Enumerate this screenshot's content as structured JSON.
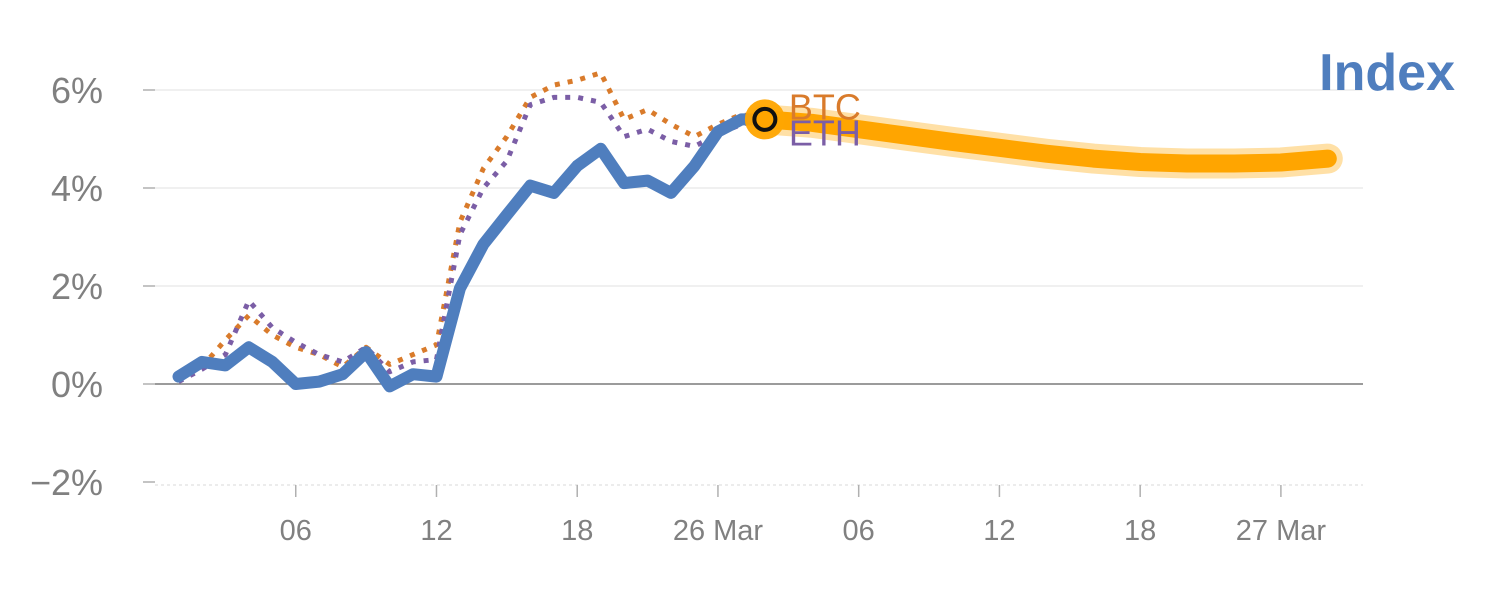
{
  "chart_data": {
    "type": "line",
    "title": "Index",
    "xlabel": "",
    "ylabel": "",
    "ylim": [
      -2,
      7
    ],
    "yticks": [
      -2,
      0,
      2,
      4,
      6
    ],
    "ytick_labels": [
      "−2%",
      "0%",
      "2%",
      "4%",
      "6%"
    ],
    "x_tick_labels": [
      "06",
      "12",
      "18",
      "26 Mar",
      "06",
      "12",
      "18",
      "27 Mar"
    ],
    "x_tick_positions": [
      5,
      11,
      17,
      23,
      29,
      35,
      41,
      47
    ],
    "xlim": [
      -1,
      50.5
    ],
    "grid": true,
    "series": [
      {
        "name": "Index",
        "style": "solid",
        "color": "#4f7ebe",
        "x": [
          0,
          1,
          2,
          3,
          4,
          5,
          6,
          7,
          8,
          9,
          10,
          11,
          12,
          13,
          14,
          15,
          16,
          17,
          18,
          19,
          20,
          21,
          22,
          23,
          24,
          25
        ],
        "values": [
          0.15,
          0.45,
          0.38,
          0.75,
          0.45,
          0.0,
          0.05,
          0.2,
          0.65,
          -0.05,
          0.2,
          0.15,
          1.95,
          2.85,
          3.45,
          4.05,
          3.9,
          4.45,
          4.8,
          4.1,
          4.15,
          3.9,
          4.45,
          5.15,
          5.4,
          5.4
        ]
      },
      {
        "name": "BTC",
        "style": "dotted",
        "color": "#d97b2b",
        "x": [
          0,
          1,
          2,
          3,
          4,
          5,
          6,
          7,
          8,
          9,
          10,
          11,
          12,
          13,
          14,
          15,
          16,
          17,
          18,
          19,
          20,
          21,
          22,
          23,
          24,
          25
        ],
        "values": [
          0.1,
          0.35,
          0.9,
          1.4,
          1.0,
          0.75,
          0.6,
          0.35,
          0.75,
          0.4,
          0.6,
          0.8,
          3.3,
          4.4,
          5.05,
          5.85,
          6.1,
          6.2,
          6.35,
          5.4,
          5.6,
          5.3,
          5.05,
          5.3,
          5.5,
          5.4
        ]
      },
      {
        "name": "ETH",
        "style": "dotted",
        "color": "#7b5ea6",
        "x": [
          0,
          1,
          2,
          3,
          4,
          5,
          6,
          7,
          8,
          9,
          10,
          11,
          12,
          13,
          14,
          15,
          16,
          17,
          18,
          19,
          20,
          21,
          22,
          23,
          24,
          25
        ],
        "values": [
          0.05,
          0.3,
          0.6,
          1.7,
          1.15,
          0.85,
          0.6,
          0.45,
          0.75,
          0.25,
          0.45,
          0.5,
          3.05,
          4.0,
          4.55,
          5.7,
          5.85,
          5.85,
          5.75,
          5.05,
          5.2,
          4.95,
          4.85,
          5.1,
          5.3,
          5.4
        ]
      },
      {
        "name": "forecast",
        "style": "band",
        "color": "#ffa500",
        "x": [
          25,
          27,
          29,
          31,
          33,
          35,
          37,
          39,
          41,
          43,
          45,
          47,
          49
        ],
        "values": [
          5.4,
          5.33,
          5.2,
          5.07,
          4.94,
          4.82,
          4.7,
          4.6,
          4.53,
          4.5,
          4.5,
          4.52,
          4.6
        ]
      }
    ],
    "end_labels": [
      {
        "text": "BTC",
        "color": "#d97b2b"
      },
      {
        "text": "ETH",
        "color": "#7b5ea6"
      }
    ],
    "title_color": "#4f7ebe"
  }
}
